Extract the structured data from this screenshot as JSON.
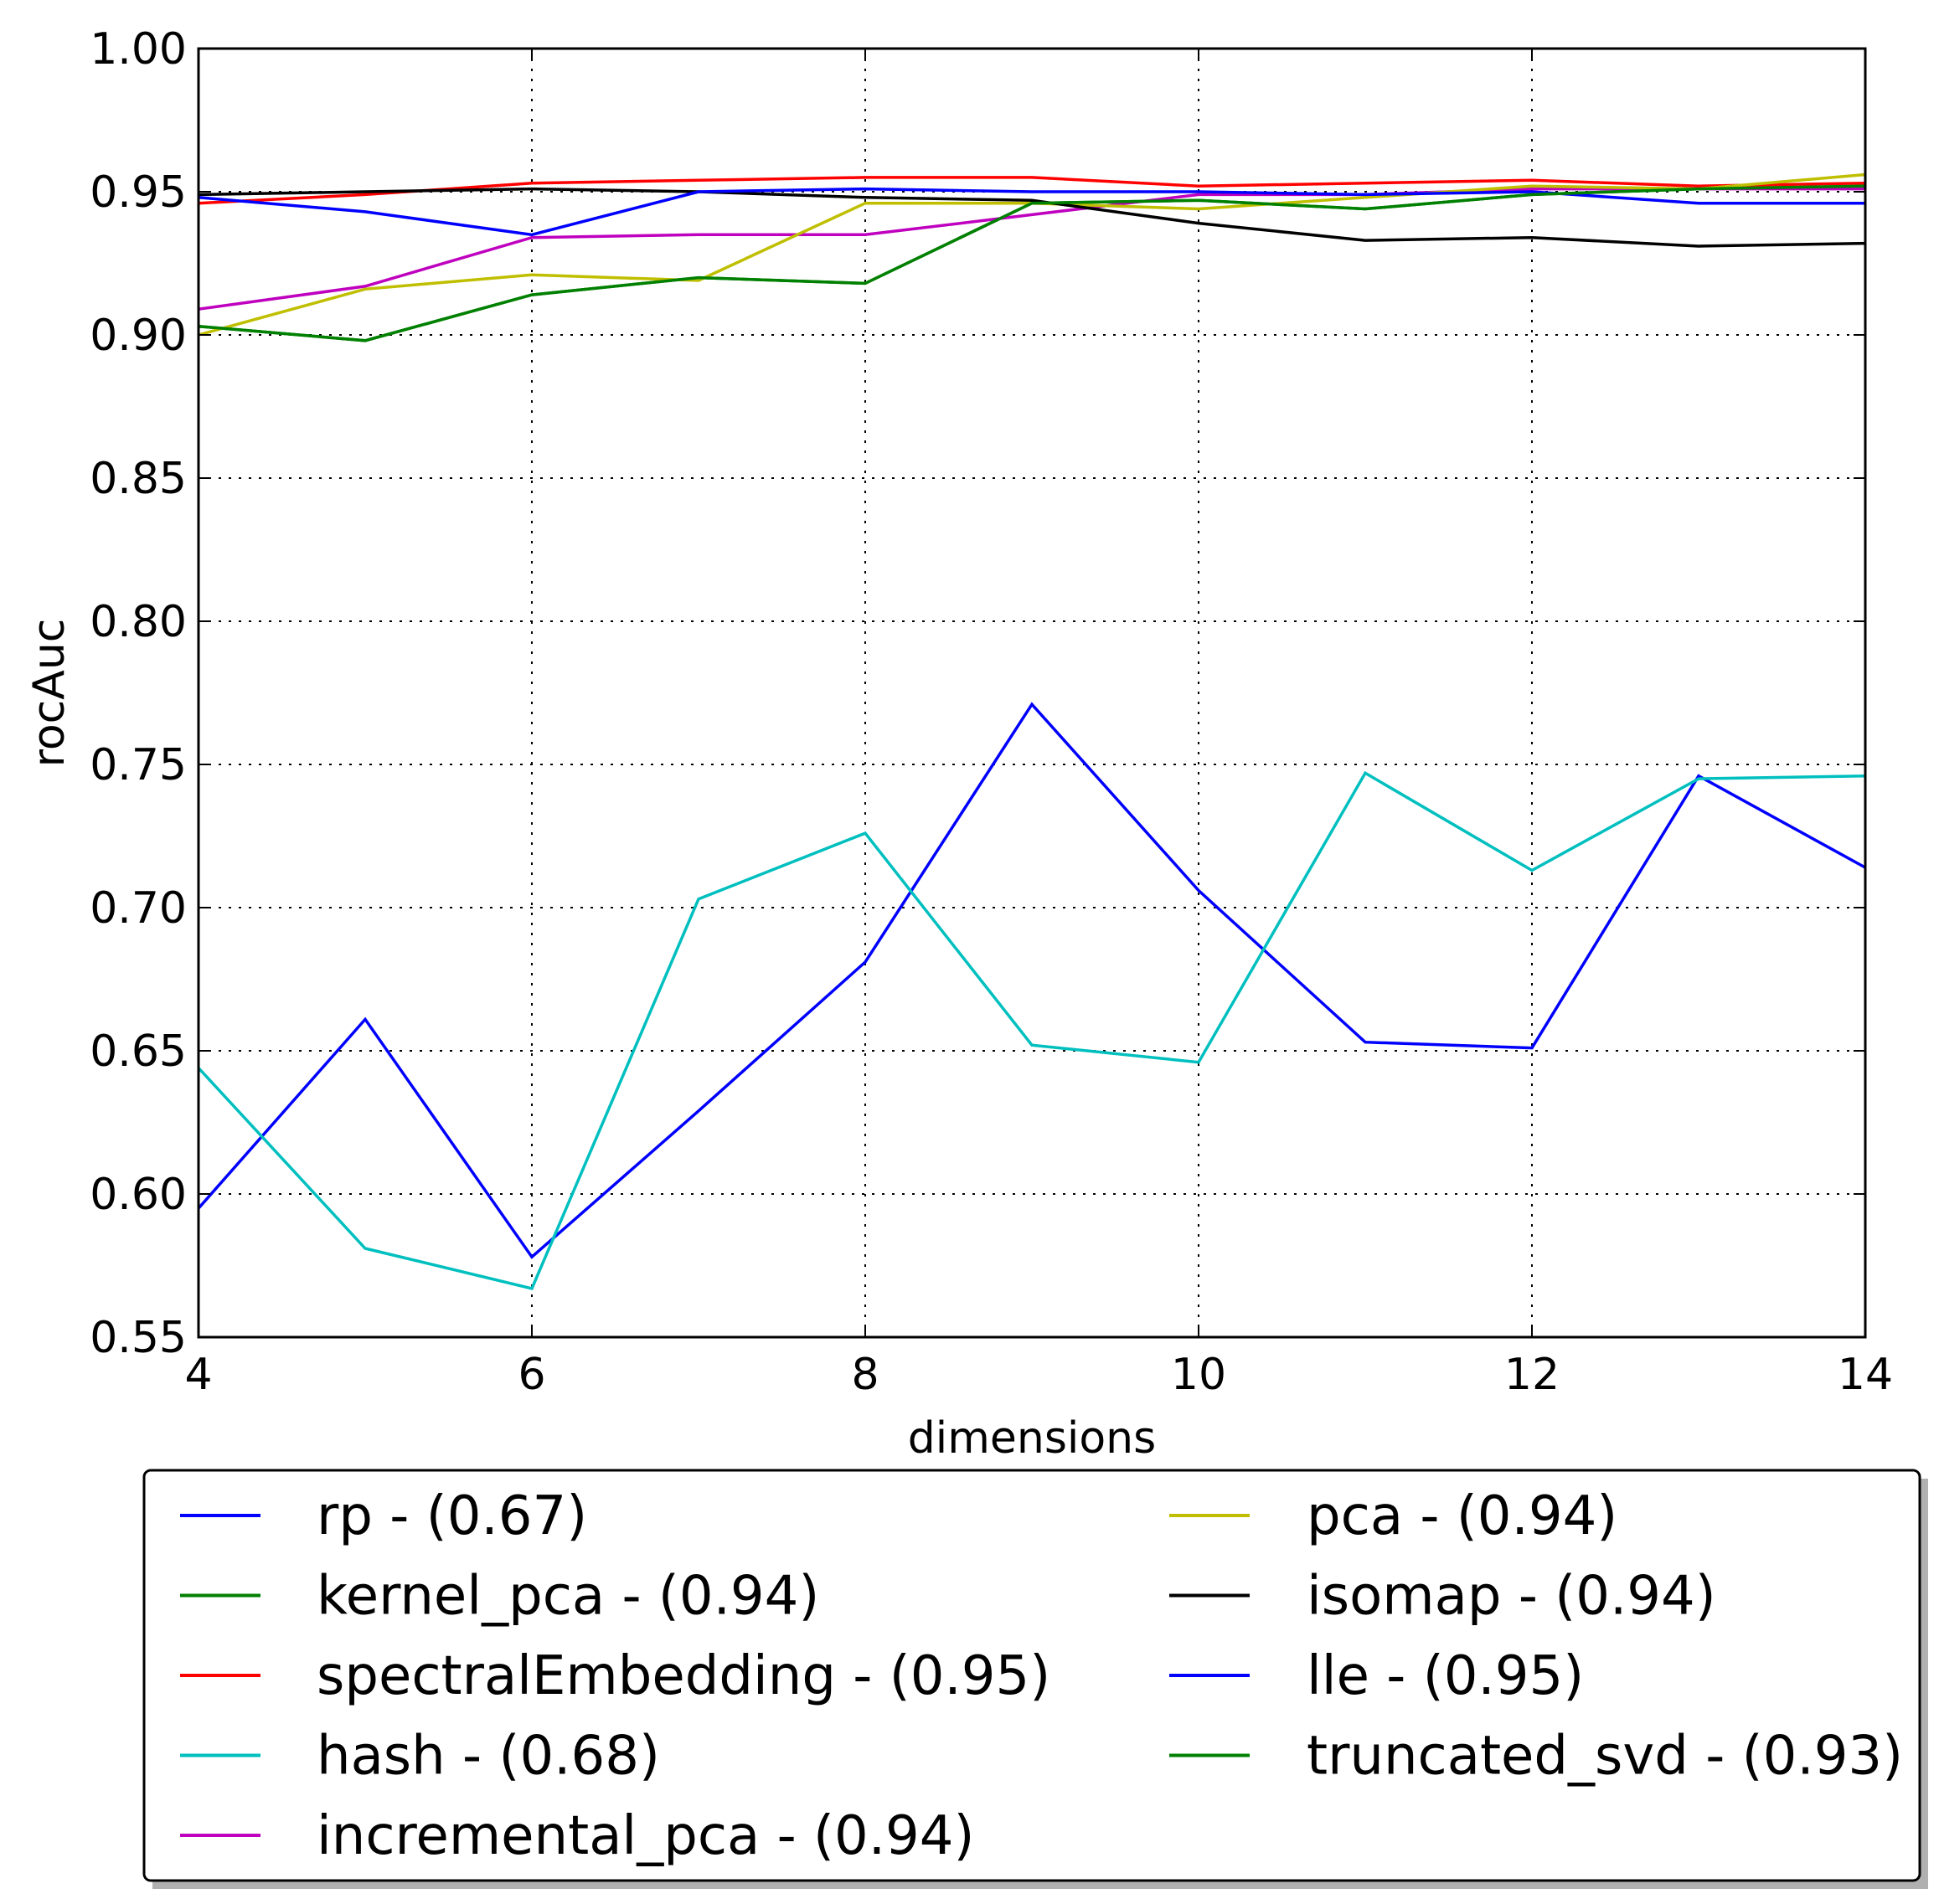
{
  "chart_data": {
    "type": "line",
    "title": "",
    "xlabel": "dimensions",
    "ylabel": "rocAuc",
    "xlim": [
      4,
      14
    ],
    "ylim": [
      0.55,
      1.0
    ],
    "grid": true,
    "legend_position": "below",
    "x": [
      4,
      5,
      6,
      7,
      8,
      9,
      10,
      11,
      12,
      13,
      14
    ],
    "x_ticks": [
      4,
      6,
      8,
      10,
      12,
      14
    ],
    "x_tick_labels": [
      "4",
      "6",
      "8",
      "10",
      "12",
      "14"
    ],
    "y_ticks": [
      0.55,
      0.6,
      0.65,
      0.7,
      0.75,
      0.8,
      0.85,
      0.9,
      0.95,
      1.0
    ],
    "y_tick_labels": [
      "0.55",
      "0.60",
      "0.65",
      "0.70",
      "0.75",
      "0.80",
      "0.85",
      "0.90",
      "0.95",
      "1.00"
    ],
    "series": [
      {
        "name": "rp - (0.67)",
        "color": "#0000ff",
        "values": [
          0.595,
          0.661,
          0.578,
          0.629,
          0.681,
          0.771,
          0.706,
          0.653,
          0.651,
          0.746,
          0.714
        ]
      },
      {
        "name": "kernel_pca - (0.94)",
        "color": "#008000",
        "values": [
          0.903,
          0.898,
          0.914,
          0.92,
          0.918,
          0.946,
          0.947,
          0.944,
          0.949,
          0.951,
          0.952
        ]
      },
      {
        "name": "spectralEmbedding - (0.95)",
        "color": "#ff0000",
        "values": [
          0.946,
          0.949,
          0.953,
          0.954,
          0.955,
          0.955,
          0.952,
          0.953,
          0.954,
          0.952,
          0.953
        ]
      },
      {
        "name": "hash - (0.68)",
        "color": "#00bfbf",
        "values": [
          0.644,
          0.581,
          0.567,
          0.703,
          0.726,
          0.652,
          0.646,
          0.747,
          0.713,
          0.745,
          0.746
        ]
      },
      {
        "name": "incremental_pca - (0.94)",
        "color": "#bf00bf",
        "values": [
          0.909,
          0.917,
          0.934,
          0.935,
          0.935,
          0.942,
          0.949,
          0.949,
          0.951,
          0.951,
          0.951
        ]
      },
      {
        "name": "pca - (0.94)",
        "color": "#bfbf00",
        "values": [
          0.9,
          0.916,
          0.921,
          0.919,
          0.946,
          0.946,
          0.944,
          0.948,
          0.952,
          0.951,
          0.956
        ]
      },
      {
        "name": "isomap - (0.94)",
        "color": "#000000",
        "values": [
          0.949,
          0.95,
          0.951,
          0.95,
          0.948,
          0.947,
          0.939,
          0.933,
          0.934,
          0.931,
          0.932
        ]
      },
      {
        "name": "lle - (0.95)",
        "color": "#0000ff",
        "values": [
          0.948,
          0.943,
          0.935,
          0.95,
          0.951,
          0.95,
          0.95,
          0.949,
          0.95,
          0.946,
          0.946
        ]
      },
      {
        "name": "truncated_svd - (0.93)",
        "color": "#008000",
        "values": [
          0.903,
          0.898,
          0.914,
          0.92,
          0.918,
          0.946,
          0.947,
          0.944,
          0.949,
          0.951,
          0.952
        ]
      }
    ]
  }
}
